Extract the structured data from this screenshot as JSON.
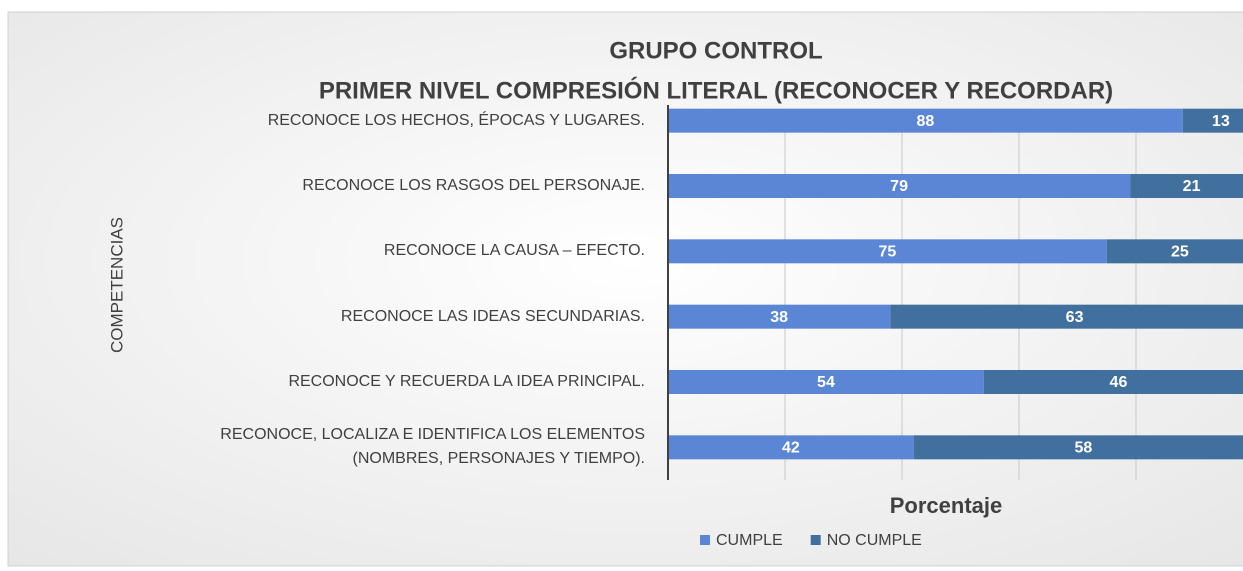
{
  "chart_data": {
    "type": "stacked-barh",
    "title": "GRUPO CONTROL",
    "subtitle": "PRIMER NIVEL COMPRESIÓN LITERAL (RECONOCER Y RECORDAR)",
    "x_label": "Porcentaje",
    "y_label": "COMPETENCIAS",
    "categories": [
      "RECONOCE LOS HECHOS, ÉPOCAS Y LUGARES.",
      "RECONOCE LOS RASGOS DEL PERSONAJE.",
      "RECONOCE LA CAUSA – EFECTO.",
      "RECONOCE LAS IDEAS SECUNDARIAS.",
      "RECONOCE Y RECUERDA LA IDEA PRINCIPAL.",
      "RECONOCE, LOCALIZA E IDENTIFICA LOS ELEMENTOS\n(NOMBRES, PERSONAJES Y TIEMPO)."
    ],
    "series": [
      {
        "name": "CUMPLE",
        "color": "#5b86d6",
        "values": [
          88,
          79,
          75,
          38,
          54,
          42
        ]
      },
      {
        "name": "NO CUMPLE",
        "color": "#41709f",
        "values": [
          13,
          21,
          25,
          63,
          46,
          58
        ]
      }
    ],
    "xlim": [
      0,
      100
    ],
    "xticks": [
      0,
      20,
      40,
      60,
      80
    ],
    "grid": true,
    "legend": "bottom"
  }
}
